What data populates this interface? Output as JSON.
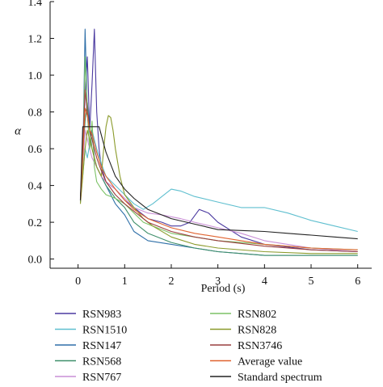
{
  "chart_data": {
    "type": "line",
    "xlabel": "Period (s)",
    "ylabel": "α",
    "xlim": [
      -0.6,
      6.3
    ],
    "ylim": [
      -0.05,
      1.4
    ],
    "xticks": [
      {
        "v": 0,
        "label": "0"
      },
      {
        "v": 1,
        "label": "1"
      },
      {
        "v": 2,
        "label": "2"
      },
      {
        "v": 3,
        "label": "3"
      },
      {
        "v": 4,
        "label": "4"
      },
      {
        "v": 5,
        "label": "5"
      },
      {
        "v": 6,
        "label": "6"
      }
    ],
    "yticks": [
      {
        "v": 0.0,
        "label": "0.0"
      },
      {
        "v": 0.2,
        "label": "0.2"
      },
      {
        "v": 0.4,
        "label": "0.4"
      },
      {
        "v": 0.6,
        "label": "0.6"
      },
      {
        "v": 0.8,
        "label": "0.8"
      },
      {
        "v": 1.0,
        "label": "1.0"
      },
      {
        "v": 1.2,
        "label": "1.2"
      },
      {
        "v": 1.4,
        "label": "1.4"
      }
    ],
    "grid": false,
    "legend_position": "bottom",
    "series": [
      {
        "name": "RSN983",
        "color": "#4b3aa0",
        "x": [
          0.05,
          0.1,
          0.15,
          0.2,
          0.25,
          0.3,
          0.35,
          0.4,
          0.45,
          0.5,
          0.6,
          0.7,
          0.8,
          1.0,
          1.2,
          1.5,
          1.8,
          2.0,
          2.2,
          2.4,
          2.6,
          2.8,
          3.0,
          3.5,
          4.0,
          5.0,
          6.0
        ],
        "y": [
          0.32,
          0.55,
          0.9,
          1.1,
          0.7,
          0.95,
          1.25,
          0.8,
          0.6,
          0.5,
          0.42,
          0.4,
          0.38,
          0.32,
          0.28,
          0.22,
          0.2,
          0.18,
          0.18,
          0.2,
          0.27,
          0.25,
          0.2,
          0.12,
          0.08,
          0.05,
          0.04
        ]
      },
      {
        "name": "RSN1510",
        "color": "#5fbfcf",
        "x": [
          0.05,
          0.1,
          0.15,
          0.2,
          0.3,
          0.4,
          0.5,
          0.6,
          0.8,
          1.0,
          1.2,
          1.4,
          1.6,
          1.8,
          2.0,
          2.2,
          2.5,
          3.0,
          3.5,
          4.0,
          4.5,
          5.0,
          5.5,
          6.0
        ],
        "y": [
          0.32,
          0.45,
          0.6,
          0.55,
          0.7,
          0.6,
          0.52,
          0.45,
          0.4,
          0.35,
          0.3,
          0.27,
          0.3,
          0.34,
          0.38,
          0.37,
          0.34,
          0.31,
          0.28,
          0.28,
          0.25,
          0.21,
          0.18,
          0.15
        ]
      },
      {
        "name": "RSN147",
        "color": "#2e6fa8",
        "x": [
          0.05,
          0.1,
          0.15,
          0.2,
          0.25,
          0.3,
          0.35,
          0.4,
          0.5,
          0.6,
          0.8,
          1.0,
          1.2,
          1.5,
          2.0,
          2.5,
          3.0,
          3.5,
          4.0,
          5.0,
          6.0
        ],
        "y": [
          0.31,
          0.5,
          1.25,
          0.8,
          0.6,
          0.7,
          0.55,
          0.5,
          0.45,
          0.4,
          0.3,
          0.24,
          0.15,
          0.1,
          0.08,
          0.06,
          0.04,
          0.03,
          0.02,
          0.02,
          0.02
        ]
      },
      {
        "name": "RSN568",
        "color": "#3f8f6a",
        "x": [
          0.05,
          0.1,
          0.15,
          0.2,
          0.25,
          0.3,
          0.4,
          0.5,
          0.6,
          0.8,
          1.0,
          1.2,
          1.5,
          2.0,
          2.5,
          3.0,
          4.0,
          5.0,
          6.0
        ],
        "y": [
          0.32,
          0.55,
          0.75,
          0.85,
          0.7,
          0.6,
          0.5,
          0.45,
          0.4,
          0.33,
          0.28,
          0.2,
          0.14,
          0.09,
          0.06,
          0.04,
          0.02,
          0.02,
          0.02
        ]
      },
      {
        "name": "RSN767",
        "color": "#c98fd6",
        "x": [
          0.05,
          0.1,
          0.15,
          0.2,
          0.25,
          0.3,
          0.4,
          0.5,
          0.6,
          0.8,
          1.0,
          1.2,
          1.5,
          1.8,
          2.0,
          2.2,
          2.5,
          3.0,
          3.5,
          4.0,
          5.0,
          6.0
        ],
        "y": [
          0.33,
          0.5,
          0.7,
          0.65,
          0.6,
          0.55,
          0.5,
          0.45,
          0.42,
          0.38,
          0.33,
          0.28,
          0.25,
          0.24,
          0.23,
          0.22,
          0.2,
          0.17,
          0.14,
          0.1,
          0.06,
          0.04
        ]
      },
      {
        "name": "RSN802",
        "color": "#7cc266",
        "x": [
          0.05,
          0.1,
          0.15,
          0.2,
          0.25,
          0.3,
          0.35,
          0.4,
          0.5,
          0.6,
          0.8,
          1.0,
          1.2,
          1.4,
          1.6,
          2.0,
          2.5,
          3.0,
          3.5,
          4.0,
          5.0,
          6.0
        ],
        "y": [
          0.34,
          0.5,
          1.1,
          0.8,
          0.6,
          0.75,
          0.5,
          0.42,
          0.38,
          0.35,
          0.33,
          0.3,
          0.25,
          0.2,
          0.18,
          0.14,
          0.12,
          0.1,
          0.09,
          0.08,
          0.06,
          0.05
        ]
      },
      {
        "name": "RSN828",
        "color": "#8a9a2a",
        "x": [
          0.05,
          0.1,
          0.15,
          0.2,
          0.3,
          0.4,
          0.5,
          0.55,
          0.6,
          0.65,
          0.7,
          0.75,
          0.8,
          0.9,
          1.0,
          1.2,
          1.4,
          1.6,
          2.0,
          2.5,
          3.0,
          4.0,
          5.0,
          6.0
        ],
        "y": [
          0.3,
          0.45,
          0.6,
          0.7,
          0.6,
          0.5,
          0.45,
          0.6,
          0.72,
          0.78,
          0.77,
          0.7,
          0.6,
          0.45,
          0.35,
          0.28,
          0.22,
          0.18,
          0.12,
          0.08,
          0.06,
          0.04,
          0.03,
          0.03
        ]
      },
      {
        "name": "RSN3746",
        "color": "#9a3e3e",
        "x": [
          0.05,
          0.1,
          0.15,
          0.2,
          0.25,
          0.3,
          0.4,
          0.5,
          0.6,
          0.8,
          1.0,
          1.2,
          1.5,
          2.0,
          2.5,
          3.0,
          4.0,
          5.0,
          6.0
        ],
        "y": [
          0.33,
          0.6,
          0.92,
          0.8,
          0.7,
          0.65,
          0.55,
          0.48,
          0.42,
          0.35,
          0.3,
          0.26,
          0.2,
          0.15,
          0.12,
          0.1,
          0.07,
          0.05,
          0.04
        ]
      },
      {
        "name": "Average value",
        "color": "#e0622e",
        "x": [
          0.05,
          0.1,
          0.15,
          0.2,
          0.25,
          0.3,
          0.4,
          0.5,
          0.6,
          0.8,
          1.0,
          1.2,
          1.5,
          2.0,
          2.5,
          3.0,
          3.5,
          4.0,
          5.0,
          6.0
        ],
        "y": [
          0.32,
          0.55,
          0.82,
          0.78,
          0.7,
          0.68,
          0.58,
          0.5,
          0.45,
          0.38,
          0.32,
          0.27,
          0.22,
          0.17,
          0.14,
          0.12,
          0.1,
          0.08,
          0.06,
          0.05
        ]
      },
      {
        "name": "Standard spectrum",
        "color": "#222222",
        "x": [
          0.05,
          0.1,
          0.45,
          0.6,
          0.8,
          1.0,
          1.2,
          1.5,
          2.0,
          2.5,
          3.0,
          3.5,
          4.0,
          4.5,
          5.0,
          5.5,
          6.0
        ],
        "y": [
          0.32,
          0.72,
          0.72,
          0.58,
          0.45,
          0.38,
          0.33,
          0.27,
          0.22,
          0.19,
          0.16,
          0.155,
          0.15,
          0.14,
          0.13,
          0.12,
          0.11
        ]
      }
    ]
  }
}
